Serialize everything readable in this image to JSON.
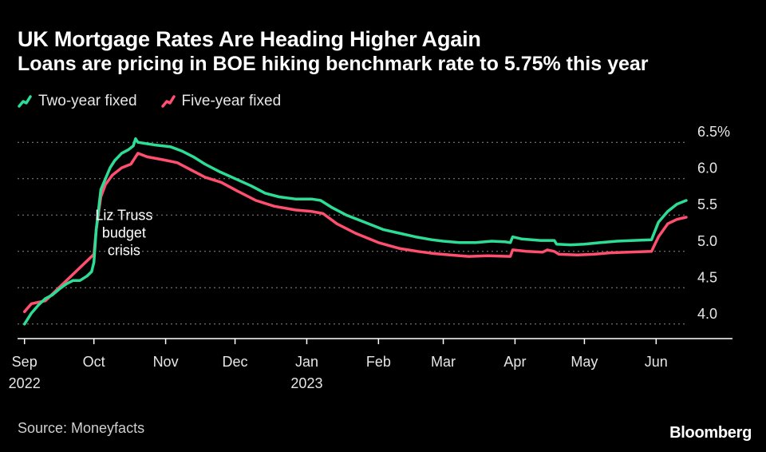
{
  "header": {
    "title": "UK Mortgage Rates Are Heading Higher Again",
    "subtitle": "Loans are pricing in BOE hiking benchmark rate to 5.75% this year"
  },
  "footer": {
    "source": "Source: Moneyfacts",
    "brand": "Bloomberg"
  },
  "colors": {
    "background": "#000000",
    "two_year": "#2ddc95",
    "five_year": "#ff4f6e",
    "grid": "#8a8a8a",
    "axis": "#ffffff"
  },
  "chart_data": {
    "type": "line",
    "title": "UK Mortgage Rates Are Heading Higher Again",
    "subtitle": "Loans are pricing in BOE hiking benchmark rate to 5.75% this year",
    "xlabel": "",
    "ylabel": "",
    "ylim": [
      3.8,
      6.7
    ],
    "xlim": [
      "2022-08-29",
      "2023-07-04"
    ],
    "y_ticks": [
      4.0,
      4.5,
      5.0,
      5.5,
      6.0,
      6.5
    ],
    "y_tick_labels": [
      "4.0",
      "4.5",
      "5.0",
      "5.5",
      "6.0",
      "6.5%"
    ],
    "x_ticks": [
      {
        "date": "2022-09-01",
        "label": "Sep",
        "sublabel": "2022"
      },
      {
        "date": "2022-10-01",
        "label": "Oct",
        "sublabel": ""
      },
      {
        "date": "2022-11-01",
        "label": "Nov",
        "sublabel": ""
      },
      {
        "date": "2022-12-01",
        "label": "Dec",
        "sublabel": ""
      },
      {
        "date": "2023-01-01",
        "label": "Jan",
        "sublabel": "2023"
      },
      {
        "date": "2023-02-01",
        "label": "Feb",
        "sublabel": ""
      },
      {
        "date": "2023-03-01",
        "label": "Mar",
        "sublabel": ""
      },
      {
        "date": "2023-04-01",
        "label": "Apr",
        "sublabel": ""
      },
      {
        "date": "2023-05-01",
        "label": "May",
        "sublabel": ""
      },
      {
        "date": "2023-06-01",
        "label": "Jun",
        "sublabel": ""
      }
    ],
    "grid": true,
    "legend": "top-left",
    "annotations": [
      {
        "lines": [
          "Liz Truss",
          "budget",
          "crisis"
        ],
        "date": "2022-10-14",
        "y": 5.43
      }
    ],
    "series": [
      {
        "name": "Two-year fixed",
        "color": "#2ddc95",
        "points": [
          [
            "2022-09-01",
            4.0
          ],
          [
            "2022-09-04",
            4.15
          ],
          [
            "2022-09-07",
            4.26
          ],
          [
            "2022-09-10",
            4.35
          ],
          [
            "2022-09-13",
            4.4
          ],
          [
            "2022-09-16",
            4.48
          ],
          [
            "2022-09-19",
            4.55
          ],
          [
            "2022-09-22",
            4.6
          ],
          [
            "2022-09-25",
            4.6
          ],
          [
            "2022-09-28",
            4.66
          ],
          [
            "2022-09-30",
            4.72
          ],
          [
            "2022-10-01",
            4.85
          ],
          [
            "2022-10-02",
            5.3
          ],
          [
            "2022-10-04",
            5.85
          ],
          [
            "2022-10-06",
            6.0
          ],
          [
            "2022-10-08",
            6.15
          ],
          [
            "2022-10-10",
            6.25
          ],
          [
            "2022-10-13",
            6.35
          ],
          [
            "2022-10-16",
            6.4
          ],
          [
            "2022-10-18",
            6.45
          ],
          [
            "2022-10-19",
            6.55
          ],
          [
            "2022-10-20",
            6.5
          ],
          [
            "2022-10-24",
            6.48
          ],
          [
            "2022-10-28",
            6.46
          ],
          [
            "2022-11-03",
            6.44
          ],
          [
            "2022-11-08",
            6.38
          ],
          [
            "2022-11-13",
            6.3
          ],
          [
            "2022-11-18",
            6.2
          ],
          [
            "2022-11-24",
            6.1
          ],
          [
            "2022-12-01",
            6.0
          ],
          [
            "2022-12-08",
            5.9
          ],
          [
            "2022-12-14",
            5.8
          ],
          [
            "2022-12-20",
            5.75
          ],
          [
            "2022-12-27",
            5.72
          ],
          [
            "2023-01-03",
            5.72
          ],
          [
            "2023-01-07",
            5.7
          ],
          [
            "2023-01-12",
            5.6
          ],
          [
            "2023-01-18",
            5.5
          ],
          [
            "2023-01-26",
            5.4
          ],
          [
            "2023-02-03",
            5.3
          ],
          [
            "2023-02-10",
            5.25
          ],
          [
            "2023-02-17",
            5.2
          ],
          [
            "2023-02-24",
            5.16
          ],
          [
            "2023-03-01",
            5.14
          ],
          [
            "2023-03-08",
            5.12
          ],
          [
            "2023-03-15",
            5.12
          ],
          [
            "2023-03-22",
            5.14
          ],
          [
            "2023-03-28",
            5.13
          ],
          [
            "2023-03-30",
            5.12
          ],
          [
            "2023-03-31",
            5.2
          ],
          [
            "2023-04-04",
            5.17
          ],
          [
            "2023-04-12",
            5.15
          ],
          [
            "2023-04-18",
            5.15
          ],
          [
            "2023-04-19",
            5.1
          ],
          [
            "2023-04-25",
            5.09
          ],
          [
            "2023-05-01",
            5.1
          ],
          [
            "2023-05-08",
            5.12
          ],
          [
            "2023-05-15",
            5.14
          ],
          [
            "2023-05-22",
            5.15
          ],
          [
            "2023-05-30",
            5.16
          ],
          [
            "2023-06-02",
            5.4
          ],
          [
            "2023-06-06",
            5.55
          ],
          [
            "2023-06-10",
            5.65
          ],
          [
            "2023-06-14",
            5.7
          ]
        ]
      },
      {
        "name": "Five-year fixed",
        "color": "#ff4f6e",
        "points": [
          [
            "2022-09-01",
            4.17
          ],
          [
            "2022-09-04",
            4.28
          ],
          [
            "2022-09-07",
            4.3
          ],
          [
            "2022-09-10",
            4.32
          ],
          [
            "2022-10-01",
            4.96
          ],
          [
            "2022-10-02",
            5.3
          ],
          [
            "2022-10-04",
            5.75
          ],
          [
            "2022-10-06",
            5.92
          ],
          [
            "2022-10-09",
            6.05
          ],
          [
            "2022-10-13",
            6.15
          ],
          [
            "2022-10-17",
            6.2
          ],
          [
            "2022-10-20",
            6.35
          ],
          [
            "2022-10-24",
            6.3
          ],
          [
            "2022-10-31",
            6.26
          ],
          [
            "2022-11-06",
            6.22
          ],
          [
            "2022-11-12",
            6.12
          ],
          [
            "2022-11-18",
            6.02
          ],
          [
            "2022-11-25",
            5.95
          ],
          [
            "2022-12-02",
            5.83
          ],
          [
            "2022-12-10",
            5.7
          ],
          [
            "2022-12-18",
            5.62
          ],
          [
            "2022-12-27",
            5.57
          ],
          [
            "2023-01-03",
            5.55
          ],
          [
            "2023-01-08",
            5.52
          ],
          [
            "2023-01-14",
            5.38
          ],
          [
            "2023-01-22",
            5.25
          ],
          [
            "2023-02-01",
            5.12
          ],
          [
            "2023-02-10",
            5.04
          ],
          [
            "2023-02-18",
            5.0
          ],
          [
            "2023-02-25",
            4.97
          ],
          [
            "2023-03-04",
            4.95
          ],
          [
            "2023-03-12",
            4.93
          ],
          [
            "2023-03-20",
            4.94
          ],
          [
            "2023-03-30",
            4.93
          ],
          [
            "2023-03-31",
            5.02
          ],
          [
            "2023-04-06",
            5.0
          ],
          [
            "2023-04-13",
            4.99
          ],
          [
            "2023-04-15",
            5.02
          ],
          [
            "2023-04-18",
            5.0
          ],
          [
            "2023-04-20",
            4.96
          ],
          [
            "2023-04-28",
            4.95
          ],
          [
            "2023-05-05",
            4.96
          ],
          [
            "2023-05-12",
            4.98
          ],
          [
            "2023-05-20",
            4.99
          ],
          [
            "2023-05-30",
            5.0
          ],
          [
            "2023-06-02",
            5.2
          ],
          [
            "2023-06-06",
            5.38
          ],
          [
            "2023-06-10",
            5.44
          ],
          [
            "2023-06-14",
            5.47
          ]
        ]
      }
    ]
  }
}
